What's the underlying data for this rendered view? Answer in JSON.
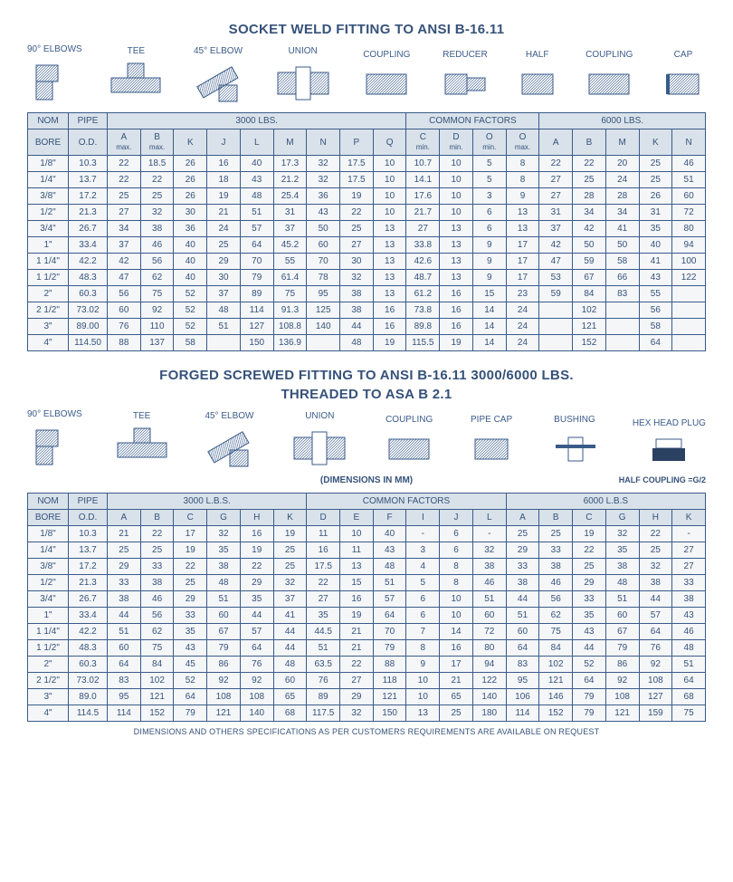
{
  "colors": {
    "stroke": "#3a5b8a",
    "hatch": "#3a5b8a",
    "fillDark": "#2a4162"
  },
  "socket": {
    "title": "SOCKET WELD FITTING TO ANSI B-16.11",
    "diagrams": [
      "90° ELBOWS",
      "TEE",
      "45° ELBOW",
      "UNION",
      "COUPLING",
      "REDUCER",
      "HALF",
      "COUPLING",
      "CAP"
    ],
    "groups": [
      {
        "label": "NOM",
        "sub": [
          "BORE"
        ]
      },
      {
        "label": "PIPE",
        "sub": [
          "O.D."
        ]
      },
      {
        "label": "3000 LBS.",
        "cols": [
          "A",
          "B",
          "K",
          "J",
          "L",
          "M",
          "N",
          "P",
          "Q"
        ],
        "subnote": {
          "0": "max.",
          "1": "max."
        }
      },
      {
        "label": "COMMON FACTORS",
        "cols": [
          "C",
          "D",
          "O",
          "O"
        ],
        "subnote": {
          "0": "min.",
          "1": "min.",
          "2": "min.",
          "3": "max."
        }
      },
      {
        "label": "6000 LBS.",
        "cols": [
          "A",
          "B",
          "M",
          "K",
          "N"
        ]
      }
    ],
    "rows": [
      {
        "bore": "1/8\"",
        "od": "10.3",
        "c3000": [
          "22",
          "18.5",
          "26",
          "16",
          "40",
          "17.3",
          "32",
          "17.5",
          "10"
        ],
        "common": [
          "10.7",
          "10",
          "5",
          "8"
        ],
        "c6000": [
          "22",
          "22",
          "20",
          "25",
          "46"
        ]
      },
      {
        "bore": "1/4\"",
        "od": "13.7",
        "c3000": [
          "22",
          "22",
          "26",
          "18",
          "43",
          "21.2",
          "32",
          "17.5",
          "10"
        ],
        "common": [
          "14.1",
          "10",
          "5",
          "8"
        ],
        "c6000": [
          "27",
          "25",
          "24",
          "25",
          "51"
        ]
      },
      {
        "bore": "3/8\"",
        "od": "17.2",
        "c3000": [
          "25",
          "25",
          "26",
          "19",
          "48",
          "25.4",
          "36",
          "19",
          "10"
        ],
        "common": [
          "17.6",
          "10",
          "3",
          "9"
        ],
        "c6000": [
          "27",
          "28",
          "28",
          "26",
          "60"
        ]
      },
      {
        "bore": "1/2\"",
        "od": "21.3",
        "c3000": [
          "27",
          "32",
          "30",
          "21",
          "51",
          "31",
          "43",
          "22",
          "10"
        ],
        "common": [
          "21.7",
          "10",
          "6",
          "13"
        ],
        "c6000": [
          "31",
          "34",
          "34",
          "31",
          "72"
        ]
      },
      {
        "bore": "3/4\"",
        "od": "26.7",
        "c3000": [
          "34",
          "38",
          "36",
          "24",
          "57",
          "37",
          "50",
          "25",
          "13"
        ],
        "common": [
          "27",
          "13",
          "6",
          "13"
        ],
        "c6000": [
          "37",
          "42",
          "41",
          "35",
          "80"
        ]
      },
      {
        "bore": "1\"",
        "od": "33.4",
        "c3000": [
          "37",
          "46",
          "40",
          "25",
          "64",
          "45.2",
          "60",
          "27",
          "13"
        ],
        "common": [
          "33.8",
          "13",
          "9",
          "17"
        ],
        "c6000": [
          "42",
          "50",
          "50",
          "40",
          "94"
        ]
      },
      {
        "bore": "1 1/4\"",
        "od": "42.2",
        "c3000": [
          "42",
          "56",
          "40",
          "29",
          "70",
          "55",
          "70",
          "30",
          "13"
        ],
        "common": [
          "42.6",
          "13",
          "9",
          "17"
        ],
        "c6000": [
          "47",
          "59",
          "58",
          "41",
          "100"
        ]
      },
      {
        "bore": "1 1/2\"",
        "od": "48.3",
        "c3000": [
          "47",
          "62",
          "40",
          "30",
          "79",
          "61.4",
          "78",
          "32",
          "13"
        ],
        "common": [
          "48.7",
          "13",
          "9",
          "17"
        ],
        "c6000": [
          "53",
          "67",
          "66",
          "43",
          "122"
        ]
      },
      {
        "bore": "2\"",
        "od": "60.3",
        "c3000": [
          "56",
          "75",
          "52",
          "37",
          "89",
          "75",
          "95",
          "38",
          "13"
        ],
        "common": [
          "61.2",
          "16",
          "15",
          "23"
        ],
        "c6000": [
          "59",
          "84",
          "83",
          "55",
          ""
        ]
      },
      {
        "bore": "2 1/2\"",
        "od": "73.02",
        "c3000": [
          "60",
          "92",
          "52",
          "48",
          "114",
          "91.3",
          "125",
          "38",
          "16"
        ],
        "common": [
          "73.8",
          "16",
          "14",
          "24"
        ],
        "c6000": [
          "",
          "102",
          "",
          "56",
          ""
        ]
      },
      {
        "bore": "3\"",
        "od": "89.00",
        "c3000": [
          "76",
          "110",
          "52",
          "51",
          "127",
          "108.8",
          "140",
          "44",
          "16"
        ],
        "common": [
          "89.8",
          "16",
          "14",
          "24"
        ],
        "c6000": [
          "",
          "121",
          "",
          "58",
          ""
        ]
      },
      {
        "bore": "4\"",
        "od": "114.50",
        "c3000": [
          "88",
          "137",
          "58",
          "",
          "150",
          "136.9",
          "",
          "48",
          "19"
        ],
        "common": [
          "115.5",
          "19",
          "14",
          "24"
        ],
        "c6000": [
          "",
          "152",
          "",
          "64",
          ""
        ]
      }
    ]
  },
  "forged": {
    "title1": "FORGED SCREWED FITTING TO ANSI B-16.11 3000/6000 LBS.",
    "title2": "THREADED TO ASA B 2.1",
    "diagrams": [
      "90° ELBOWS",
      "TEE",
      "45° ELBOW",
      "UNION",
      "COUPLING",
      "PIPE CAP",
      "BUSHING",
      "HEX HEAD PLUG"
    ],
    "dimNote": "(DIMENSIONS IN MM)",
    "halfNote": "HALF COUPLING =G/2",
    "groups": [
      {
        "label": "NOM",
        "sub": [
          "BORE"
        ]
      },
      {
        "label": "PIPE",
        "sub": [
          "O.D."
        ]
      },
      {
        "label": "3000 L.B.S.",
        "cols": [
          "A",
          "B",
          "C",
          "G",
          "H",
          "K"
        ]
      },
      {
        "label": "COMMON FACTORS",
        "cols": [
          "D",
          "E",
          "F",
          "I",
          "J",
          "L"
        ]
      },
      {
        "label": "6000 L.B.S",
        "cols": [
          "A",
          "B",
          "C",
          "G",
          "H",
          "K"
        ]
      }
    ],
    "rows": [
      {
        "bore": "1/8\"",
        "od": "10.3",
        "c3000": [
          "21",
          "22",
          "17",
          "32",
          "16",
          "19"
        ],
        "common": [
          "11",
          "10",
          "40",
          "-",
          "6",
          "-"
        ],
        "c6000": [
          "25",
          "25",
          "19",
          "32",
          "22",
          "-"
        ]
      },
      {
        "bore": "1/4\"",
        "od": "13.7",
        "c3000": [
          "25",
          "25",
          "19",
          "35",
          "19",
          "25"
        ],
        "common": [
          "16",
          "11",
          "43",
          "3",
          "6",
          "32"
        ],
        "c6000": [
          "29",
          "33",
          "22",
          "35",
          "25",
          "27"
        ]
      },
      {
        "bore": "3/8\"",
        "od": "17.2",
        "c3000": [
          "29",
          "33",
          "22",
          "38",
          "22",
          "25"
        ],
        "common": [
          "17.5",
          "13",
          "48",
          "4",
          "8",
          "38"
        ],
        "c6000": [
          "33",
          "38",
          "25",
          "38",
          "32",
          "27"
        ]
      },
      {
        "bore": "1/2\"",
        "od": "21.3",
        "c3000": [
          "33",
          "38",
          "25",
          "48",
          "29",
          "32"
        ],
        "common": [
          "22",
          "15",
          "51",
          "5",
          "8",
          "46"
        ],
        "c6000": [
          "38",
          "46",
          "29",
          "48",
          "38",
          "33"
        ]
      },
      {
        "bore": "3/4\"",
        "od": "26.7",
        "c3000": [
          "38",
          "46",
          "29",
          "51",
          "35",
          "37"
        ],
        "common": [
          "27",
          "16",
          "57",
          "6",
          "10",
          "51"
        ],
        "c6000": [
          "44",
          "56",
          "33",
          "51",
          "44",
          "38"
        ]
      },
      {
        "bore": "1\"",
        "od": "33.4",
        "c3000": [
          "44",
          "56",
          "33",
          "60",
          "44",
          "41"
        ],
        "common": [
          "35",
          "19",
          "64",
          "6",
          "10",
          "60"
        ],
        "c6000": [
          "51",
          "62",
          "35",
          "60",
          "57",
          "43"
        ]
      },
      {
        "bore": "1 1/4\"",
        "od": "42.2",
        "c3000": [
          "51",
          "62",
          "35",
          "67",
          "57",
          "44"
        ],
        "common": [
          "44.5",
          "21",
          "70",
          "7",
          "14",
          "72"
        ],
        "c6000": [
          "60",
          "75",
          "43",
          "67",
          "64",
          "46"
        ]
      },
      {
        "bore": "1 1/2\"",
        "od": "48.3",
        "c3000": [
          "60",
          "75",
          "43",
          "79",
          "64",
          "44"
        ],
        "common": [
          "51",
          "21",
          "79",
          "8",
          "16",
          "80"
        ],
        "c6000": [
          "64",
          "84",
          "44",
          "79",
          "76",
          "48"
        ]
      },
      {
        "bore": "2\"",
        "od": "60.3",
        "c3000": [
          "64",
          "84",
          "45",
          "86",
          "76",
          "48"
        ],
        "common": [
          "63.5",
          "22",
          "88",
          "9",
          "17",
          "94"
        ],
        "c6000": [
          "83",
          "102",
          "52",
          "86",
          "92",
          "51"
        ]
      },
      {
        "bore": "2 1/2\"",
        "od": "73.02",
        "c3000": [
          "83",
          "102",
          "52",
          "92",
          "92",
          "60"
        ],
        "common": [
          "76",
          "27",
          "118",
          "10",
          "21",
          "122"
        ],
        "c6000": [
          "95",
          "121",
          "64",
          "92",
          "108",
          "64"
        ]
      },
      {
        "bore": "3\"",
        "od": "89.0",
        "c3000": [
          "95",
          "121",
          "64",
          "108",
          "108",
          "65"
        ],
        "common": [
          "89",
          "29",
          "121",
          "10",
          "65",
          "140"
        ],
        "c6000": [
          "106",
          "146",
          "79",
          "108",
          "127",
          "68"
        ]
      },
      {
        "bore": "4\"",
        "od": "114.5",
        "c3000": [
          "114",
          "152",
          "79",
          "121",
          "140",
          "68"
        ],
        "common": [
          "117.5",
          "32",
          "150",
          "13",
          "25",
          "180"
        ],
        "c6000": [
          "114",
          "152",
          "79",
          "121",
          "159",
          "75"
        ]
      }
    ],
    "footer": "DIMENSIONS AND OTHERS SPECIFICATIONS AS PER CUSTOMERS REQUIREMENTS ARE AVAILABLE ON REQUEST"
  }
}
